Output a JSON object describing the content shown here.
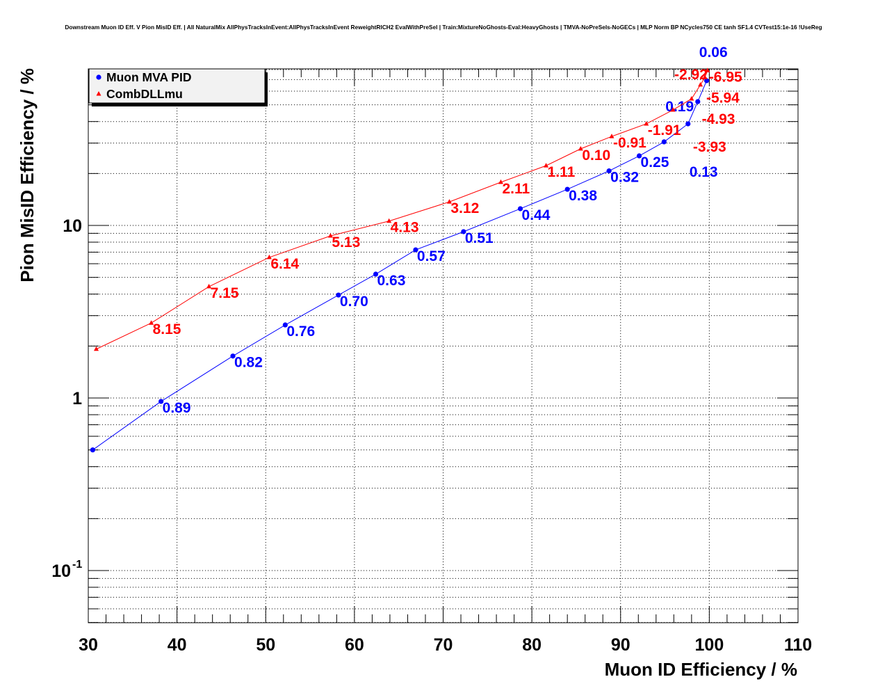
{
  "chart_data": {
    "type": "scatter",
    "title": "Downstream Muon ID Eff. V Pion MisID Eff. | All NaturalMix AllPhysTracksInEvent:AllPhysTracksInEvent ReweightRICH2 EvalWithPreSel | Train:MixtureNoGhosts-Eval:HeavyGhosts | TMVA-NoPreSels-NoGECs | MLP Norm BP NCycles750 CE tanh SF1.4 CVTest15:1e-16 !UseReg",
    "xlabel": "Muon ID Efficiency / %",
    "ylabel": "Pion MisID Efficiency / %",
    "xlim": [
      30,
      110
    ],
    "ylim": [
      0.05,
      80
    ],
    "yscale": "log",
    "grid": true,
    "legend_position": "top-left",
    "x_ticks": [
      "30",
      "40",
      "50",
      "60",
      "70",
      "80",
      "90",
      "100",
      "110"
    ],
    "y_ticks": [
      {
        "value": 10,
        "label": "10"
      },
      {
        "value": 1,
        "label": "1"
      },
      {
        "value": 0.1,
        "label": "10",
        "exp": "-1"
      }
    ],
    "series": [
      {
        "name": "Muon MVA PID",
        "color": "#0000ff",
        "marker": "circle",
        "points": [
          {
            "x": 30.5,
            "y": 0.5
          },
          {
            "x": 38.2,
            "y": 0.955,
            "label": "0.89"
          },
          {
            "x": 46.3,
            "y": 1.75,
            "label": "0.82"
          },
          {
            "x": 52.2,
            "y": 2.65,
            "label": "0.76"
          },
          {
            "x": 58.2,
            "y": 3.95,
            "label": "0.70"
          },
          {
            "x": 62.4,
            "y": 5.22,
            "label": "0.63"
          },
          {
            "x": 66.9,
            "y": 7.22,
            "label": "0.57"
          },
          {
            "x": 72.3,
            "y": 9.2,
            "label": "0.51"
          },
          {
            "x": 78.7,
            "y": 12.5,
            "label": "0.44"
          },
          {
            "x": 84.0,
            "y": 16.2,
            "label": "0.38"
          },
          {
            "x": 88.7,
            "y": 20.7,
            "label": "0.32"
          },
          {
            "x": 92.1,
            "y": 25.3,
            "label": "0.25"
          },
          {
            "x": 94.9,
            "y": 30.5,
            "label": "0.19"
          },
          {
            "x": 97.6,
            "y": 38.8,
            "label": "0.13"
          },
          {
            "x": 98.7,
            "y": 52.2,
            "label": "0.06"
          },
          {
            "x": 99.7,
            "y": 69
          }
        ]
      },
      {
        "name": "CombDLLmu",
        "color": "#ff0000",
        "marker": "triangle",
        "points": [
          {
            "x": 30.9,
            "y": 1.92
          },
          {
            "x": 37.1,
            "y": 2.72,
            "label": "8.15"
          },
          {
            "x": 43.6,
            "y": 4.42,
            "label": "7.15"
          },
          {
            "x": 50.4,
            "y": 6.53,
            "label": "6.14"
          },
          {
            "x": 57.3,
            "y": 8.7,
            "label": "5.13"
          },
          {
            "x": 63.9,
            "y": 10.6,
            "label": "4.13"
          },
          {
            "x": 70.7,
            "y": 13.7,
            "label": "3.12"
          },
          {
            "x": 76.5,
            "y": 17.8,
            "label": "2.11"
          },
          {
            "x": 81.6,
            "y": 22.2,
            "label": "1.11"
          },
          {
            "x": 85.5,
            "y": 27.8,
            "label": "0.10"
          },
          {
            "x": 89.0,
            "y": 32.8,
            "label": "-0.91"
          },
          {
            "x": 92.9,
            "y": 38.8,
            "label": "-1.91"
          },
          {
            "x": 95.9,
            "y": 46.7,
            "label": "-2.92"
          },
          {
            "x": 98.0,
            "y": 54.2,
            "label": "-3.93"
          },
          {
            "x": 99.0,
            "y": 65.3,
            "label": "-4.93"
          },
          {
            "x": 99.5,
            "y": 72,
            "label": "-5.94"
          },
          {
            "x": 99.8,
            "y": 79,
            "label": "-6.95"
          }
        ]
      }
    ]
  }
}
